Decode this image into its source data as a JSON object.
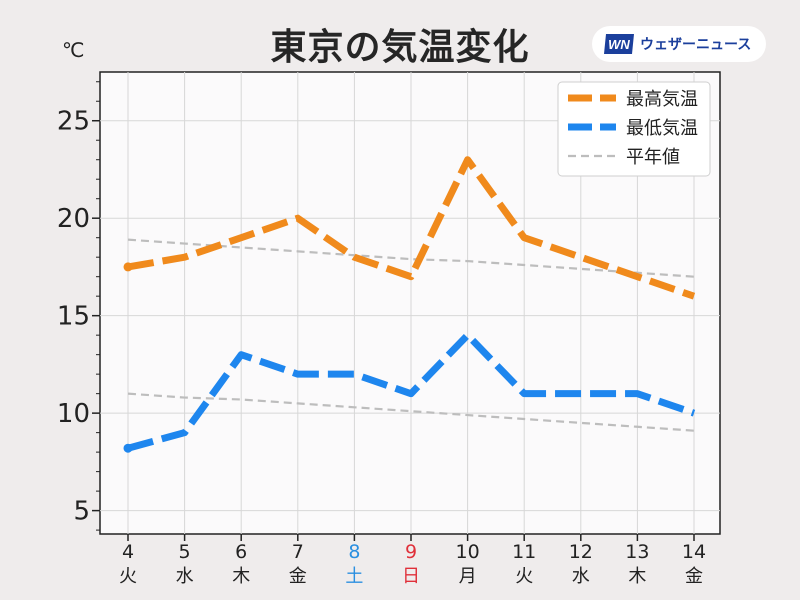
{
  "header": {
    "title": "東京の気温変化",
    "unit": "℃",
    "logo_text": "ウェザーニュース",
    "logo_mark": "WN"
  },
  "colors": {
    "high": "#f08a1c",
    "low": "#1e86ee",
    "normal": "#bdbdbd",
    "saturday": "#2b8fe0",
    "sunday": "#e0303a",
    "weekday": "#222222"
  },
  "chart_data": {
    "type": "line",
    "title": "東京の気温変化",
    "xlabel": "",
    "ylabel": "℃",
    "ylim": [
      3.8,
      27.5
    ],
    "yticks": [
      5,
      10,
      15,
      20,
      25
    ],
    "grid": true,
    "legend_position": "top-right",
    "categories": [
      {
        "day": "4",
        "weekday": "火",
        "type": "weekday"
      },
      {
        "day": "5",
        "weekday": "水",
        "type": "weekday"
      },
      {
        "day": "6",
        "weekday": "木",
        "type": "weekday"
      },
      {
        "day": "7",
        "weekday": "金",
        "type": "weekday"
      },
      {
        "day": "8",
        "weekday": "土",
        "type": "saturday"
      },
      {
        "day": "9",
        "weekday": "日",
        "type": "sunday"
      },
      {
        "day": "10",
        "weekday": "月",
        "type": "weekday"
      },
      {
        "day": "11",
        "weekday": "火",
        "type": "weekday"
      },
      {
        "day": "12",
        "weekday": "水",
        "type": "weekday"
      },
      {
        "day": "13",
        "weekday": "木",
        "type": "weekday"
      },
      {
        "day": "14",
        "weekday": "金",
        "type": "weekday"
      }
    ],
    "series": [
      {
        "name": "最高気温",
        "key": "high",
        "style": "dashed-thick",
        "values": [
          17.5,
          18,
          19,
          20,
          18,
          17,
          23,
          19,
          18,
          17,
          16
        ]
      },
      {
        "name": "最低気温",
        "key": "low",
        "style": "dashed-thick",
        "values": [
          8.2,
          9,
          13,
          12,
          12,
          11,
          14,
          11,
          11,
          11,
          10
        ]
      },
      {
        "name": "平年値",
        "key": "normal",
        "style": "dashed-thin",
        "segments": [
          {
            "values": [
              18.9,
              18.7,
              18.5,
              18.3,
              18.1,
              17.9,
              17.8,
              17.6,
              17.4,
              17.2,
              17.0
            ]
          },
          {
            "values": [
              11.0,
              10.8,
              10.7,
              10.5,
              10.3,
              10.1,
              9.9,
              9.7,
              9.5,
              9.3,
              9.1
            ]
          }
        ]
      }
    ]
  }
}
